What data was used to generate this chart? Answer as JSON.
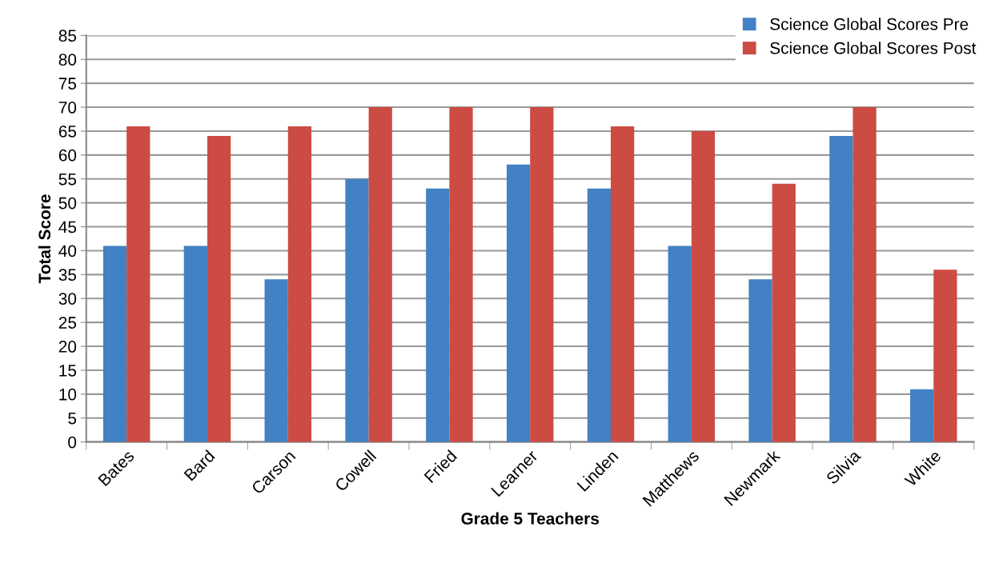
{
  "chart_data": {
    "type": "bar",
    "xlabel": "Grade 5 Teachers",
    "ylabel": "Total Score",
    "categories": [
      "Bates",
      "Bard",
      "Carson",
      "Cowell",
      "Fried",
      "Learner",
      "Linden",
      "Matthews",
      "Newmark",
      "Silvia",
      "White"
    ],
    "series": [
      {
        "name": "Science Global Scores Pre",
        "color": "#4281c4",
        "values": [
          41,
          41,
          34,
          55,
          53,
          58,
          53,
          41,
          34,
          64,
          11
        ]
      },
      {
        "name": "Science Global Scores Post",
        "color": "#cc4b42",
        "values": [
          66,
          64,
          66,
          70,
          70,
          70,
          66,
          65,
          54,
          70,
          36
        ]
      }
    ],
    "ylim": [
      0,
      85
    ],
    "yticks": [
      0,
      5,
      10,
      15,
      20,
      25,
      30,
      35,
      40,
      45,
      50,
      55,
      60,
      65,
      70,
      75,
      80,
      85
    ],
    "grid": "y",
    "legend": "top right"
  }
}
